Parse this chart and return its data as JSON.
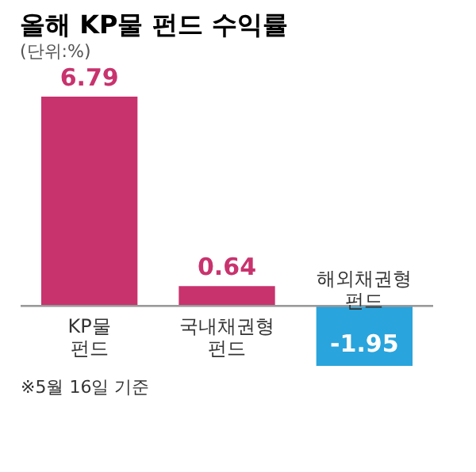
{
  "chart_data": {
    "type": "bar",
    "title": "올해 KP물 펀드 수익률",
    "subtitle": "(단위:%)",
    "categories": [
      "KP물\n펀드",
      "국내채권형\n펀드",
      "해외채권형\n펀드"
    ],
    "values": [
      6.79,
      0.64,
      -1.95
    ],
    "colors": [
      "#c8336e",
      "#c8336e",
      "#2aa4dc"
    ],
    "data_labels": true,
    "annotations": [
      "※5월 16일 기준"
    ]
  }
}
